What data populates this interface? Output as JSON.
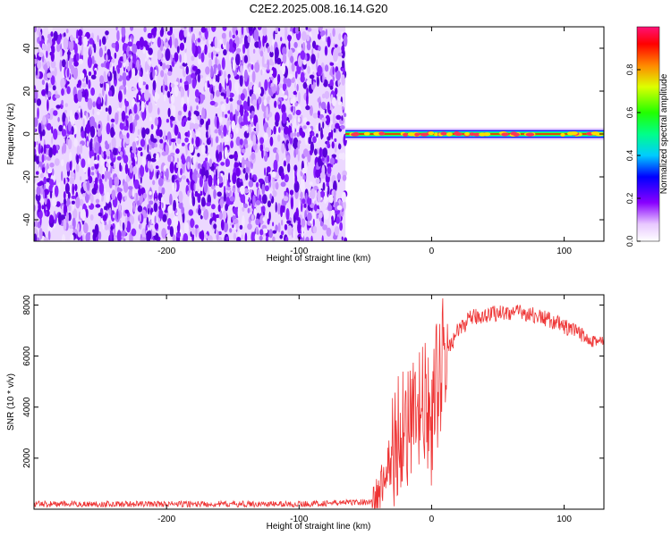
{
  "title": "C2E2.2025.008.16.14.G20",
  "chart_data": [
    {
      "type": "heatmap",
      "xlabel": "Height of straight line (km)",
      "ylabel": "Frequency (Hz)",
      "xlim": [
        -300,
        130
      ],
      "ylim": [
        -50,
        50
      ],
      "xticks": [
        -200,
        -100,
        0,
        100
      ],
      "yticks": [
        -40,
        -20,
        0,
        20,
        40
      ],
      "noise_region": [
        -300,
        -65
      ],
      "signal_region": [
        -65,
        130
      ],
      "signal_frequency": 0,
      "colorbar": {
        "label": "Normalized spectral amplitude",
        "ticks": [
          0.0,
          0.2,
          0.4,
          0.6,
          0.8
        ],
        "range": [
          0,
          1
        ]
      }
    },
    {
      "type": "line",
      "xlabel": "Height of straight line (km)",
      "ylabel": "SNR (10 * v/v)",
      "xlim": [
        -300,
        130
      ],
      "ylim": [
        0,
        8400
      ],
      "xticks": [
        -200,
        -100,
        0,
        100
      ],
      "yticks": [
        2000,
        4000,
        6000,
        8000
      ],
      "line_color": "#ee3333",
      "profile_x": [
        -300,
        -100,
        -40,
        -35,
        -30,
        -25,
        -20,
        -15,
        -10,
        -5,
        0,
        5,
        10,
        20,
        30,
        50,
        70,
        90,
        110,
        130
      ],
      "profile_y": [
        200,
        200,
        300,
        1400,
        2000,
        3000,
        3500,
        3000,
        3800,
        4000,
        3200,
        5200,
        6000,
        7000,
        7500,
        7700,
        7700,
        7400,
        6900,
        6500
      ]
    }
  ]
}
